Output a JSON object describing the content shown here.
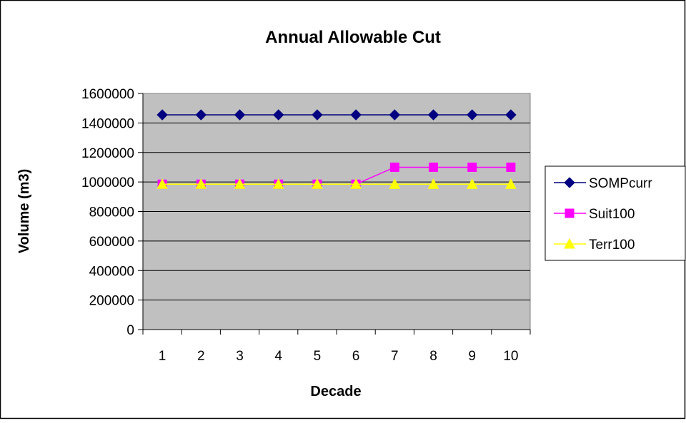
{
  "chart_data": {
    "type": "line",
    "title": "Annual Allowable Cut",
    "xlabel": "Decade",
    "ylabel": "Volume (m3)",
    "categories": [
      "1",
      "2",
      "3",
      "4",
      "5",
      "6",
      "7",
      "8",
      "9",
      "10"
    ],
    "ylim": [
      0,
      1600000
    ],
    "yticks": [
      "0",
      "200000",
      "400000",
      "600000",
      "800000",
      "1000000",
      "1200000",
      "1400000",
      "1600000"
    ],
    "grid": true,
    "legend_position": "right",
    "background": "#c0c0c0",
    "series": [
      {
        "name": "SOMPcurr",
        "marker": "diamond",
        "color": "#000080",
        "values": [
          1455000,
          1455000,
          1455000,
          1455000,
          1455000,
          1455000,
          1455000,
          1455000,
          1455000,
          1455000
        ]
      },
      {
        "name": "Suit100",
        "marker": "square",
        "color": "#ff00ff",
        "values": [
          985000,
          985000,
          985000,
          985000,
          985000,
          985000,
          1100000,
          1100000,
          1100000,
          1100000
        ]
      },
      {
        "name": "Terr100",
        "marker": "triangle",
        "color": "#ffff00",
        "values": [
          985000,
          985000,
          985000,
          985000,
          985000,
          985000,
          985000,
          985000,
          985000,
          985000
        ]
      }
    ]
  }
}
